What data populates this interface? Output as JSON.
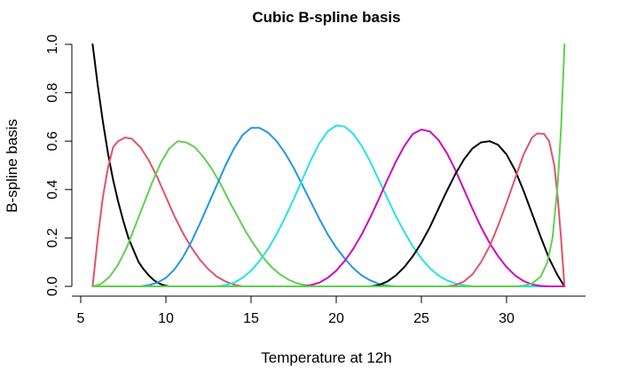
{
  "chart_data": {
    "type": "line",
    "title": "Cubic B-spline basis",
    "xlabel": "Temperature at 12h",
    "ylabel": "B-spline basis",
    "xlim": [
      5.5,
      33.7
    ],
    "ylim": [
      0,
      1.0
    ],
    "x_ticks": [
      "5",
      "10",
      "15",
      "20",
      "25",
      "30"
    ],
    "y_ticks": [
      "0.0",
      "0.2",
      "0.4",
      "0.6",
      "0.8",
      "1.0"
    ],
    "grid": false,
    "legend": "none",
    "series": [
      {
        "color": "#000000",
        "points": [
          [
            5.7,
            1.0
          ],
          [
            6.0,
            0.83
          ],
          [
            6.3,
            0.68
          ],
          [
            6.6,
            0.55
          ],
          [
            6.9,
            0.44
          ],
          [
            7.2,
            0.35
          ],
          [
            7.5,
            0.27
          ],
          [
            7.8,
            0.2
          ],
          [
            8.1,
            0.15
          ],
          [
            8.4,
            0.1
          ],
          [
            8.7,
            0.07
          ],
          [
            9.0,
            0.045
          ],
          [
            9.3,
            0.025
          ],
          [
            9.6,
            0.012
          ],
          [
            9.9,
            0.004
          ],
          [
            10.2,
            0.0
          ],
          [
            33.4,
            0.0
          ]
        ]
      },
      {
        "color": "#DF536B",
        "points": [
          [
            5.7,
            0.0
          ],
          [
            6.0,
            0.2
          ],
          [
            6.3,
            0.37
          ],
          [
            6.6,
            0.49
          ],
          [
            6.9,
            0.575
          ],
          [
            7.2,
            0.6
          ],
          [
            7.6,
            0.615
          ],
          [
            8.0,
            0.61
          ],
          [
            8.5,
            0.575
          ],
          [
            9.0,
            0.52
          ],
          [
            9.5,
            0.45
          ],
          [
            10.0,
            0.37
          ],
          [
            10.5,
            0.29
          ],
          [
            11.0,
            0.22
          ],
          [
            11.5,
            0.16
          ],
          [
            12.0,
            0.11
          ],
          [
            12.5,
            0.07
          ],
          [
            13.0,
            0.04
          ],
          [
            13.5,
            0.02
          ],
          [
            14.0,
            0.007
          ],
          [
            14.5,
            0.0
          ],
          [
            33.4,
            0.0
          ]
        ]
      },
      {
        "color": "#61D04F",
        "points": [
          [
            5.7,
            0.0
          ],
          [
            6.2,
            0.01
          ],
          [
            6.7,
            0.04
          ],
          [
            7.2,
            0.09
          ],
          [
            7.7,
            0.16
          ],
          [
            8.2,
            0.25
          ],
          [
            8.7,
            0.34
          ],
          [
            9.2,
            0.43
          ],
          [
            9.7,
            0.51
          ],
          [
            10.2,
            0.57
          ],
          [
            10.7,
            0.6
          ],
          [
            11.2,
            0.595
          ],
          [
            11.7,
            0.575
          ],
          [
            12.2,
            0.535
          ],
          [
            12.7,
            0.485
          ],
          [
            13.2,
            0.425
          ],
          [
            13.7,
            0.355
          ],
          [
            14.2,
            0.29
          ],
          [
            14.7,
            0.225
          ],
          [
            15.2,
            0.17
          ],
          [
            15.7,
            0.12
          ],
          [
            16.2,
            0.08
          ],
          [
            16.7,
            0.05
          ],
          [
            17.2,
            0.028
          ],
          [
            17.7,
            0.013
          ],
          [
            18.2,
            0.004
          ],
          [
            18.7,
            0.0
          ],
          [
            33.4,
            0.0
          ]
        ]
      },
      {
        "color": "#2297E6",
        "points": [
          [
            5.7,
            0.0
          ],
          [
            8.5,
            0.0
          ],
          [
            9.0,
            0.005
          ],
          [
            9.5,
            0.015
          ],
          [
            10.0,
            0.035
          ],
          [
            10.5,
            0.07
          ],
          [
            11.0,
            0.12
          ],
          [
            11.5,
            0.185
          ],
          [
            12.0,
            0.26
          ],
          [
            12.5,
            0.34
          ],
          [
            13.0,
            0.42
          ],
          [
            13.5,
            0.5
          ],
          [
            14.0,
            0.57
          ],
          [
            14.5,
            0.625
          ],
          [
            15.0,
            0.655
          ],
          [
            15.5,
            0.655
          ],
          [
            16.0,
            0.635
          ],
          [
            16.5,
            0.6
          ],
          [
            17.0,
            0.55
          ],
          [
            17.5,
            0.49
          ],
          [
            18.0,
            0.42
          ],
          [
            18.5,
            0.35
          ],
          [
            19.0,
            0.28
          ],
          [
            19.5,
            0.215
          ],
          [
            20.0,
            0.16
          ],
          [
            20.5,
            0.115
          ],
          [
            21.0,
            0.075
          ],
          [
            21.5,
            0.045
          ],
          [
            22.0,
            0.025
          ],
          [
            22.5,
            0.01
          ],
          [
            23.0,
            0.003
          ],
          [
            23.5,
            0.0
          ],
          [
            33.4,
            0.0
          ]
        ]
      },
      {
        "color": "#28E2E5",
        "points": [
          [
            5.7,
            0.0
          ],
          [
            13.0,
            0.0
          ],
          [
            13.5,
            0.005
          ],
          [
            14.0,
            0.015
          ],
          [
            14.5,
            0.035
          ],
          [
            15.0,
            0.065
          ],
          [
            15.5,
            0.105
          ],
          [
            16.0,
            0.155
          ],
          [
            16.5,
            0.215
          ],
          [
            17.0,
            0.285
          ],
          [
            17.5,
            0.36
          ],
          [
            18.0,
            0.44
          ],
          [
            18.5,
            0.52
          ],
          [
            19.0,
            0.59
          ],
          [
            19.5,
            0.64
          ],
          [
            20.0,
            0.665
          ],
          [
            20.5,
            0.66
          ],
          [
            21.0,
            0.63
          ],
          [
            21.5,
            0.58
          ],
          [
            22.0,
            0.515
          ],
          [
            22.5,
            0.44
          ],
          [
            23.0,
            0.365
          ],
          [
            23.5,
            0.29
          ],
          [
            24.0,
            0.225
          ],
          [
            24.5,
            0.165
          ],
          [
            25.0,
            0.115
          ],
          [
            25.5,
            0.075
          ],
          [
            26.0,
            0.045
          ],
          [
            26.5,
            0.025
          ],
          [
            27.0,
            0.012
          ],
          [
            27.5,
            0.005
          ],
          [
            28.0,
            0.0
          ],
          [
            33.4,
            0.0
          ]
        ]
      },
      {
        "color": "#CD0BBC",
        "points": [
          [
            5.7,
            0.0
          ],
          [
            18.0,
            0.0
          ],
          [
            18.5,
            0.005
          ],
          [
            19.0,
            0.015
          ],
          [
            19.5,
            0.035
          ],
          [
            20.0,
            0.065
          ],
          [
            20.5,
            0.105
          ],
          [
            21.0,
            0.155
          ],
          [
            21.5,
            0.215
          ],
          [
            22.0,
            0.285
          ],
          [
            22.5,
            0.36
          ],
          [
            23.0,
            0.44
          ],
          [
            23.5,
            0.515
          ],
          [
            24.0,
            0.58
          ],
          [
            24.5,
            0.63
          ],
          [
            25.0,
            0.648
          ],
          [
            25.5,
            0.64
          ],
          [
            26.0,
            0.605
          ],
          [
            26.5,
            0.55
          ],
          [
            27.0,
            0.48
          ],
          [
            27.5,
            0.4
          ],
          [
            28.0,
            0.32
          ],
          [
            28.5,
            0.245
          ],
          [
            29.0,
            0.18
          ],
          [
            29.5,
            0.125
          ],
          [
            30.0,
            0.08
          ],
          [
            30.5,
            0.045
          ],
          [
            31.0,
            0.022
          ],
          [
            31.5,
            0.008
          ],
          [
            32.0,
            0.002
          ],
          [
            32.5,
            0.0
          ],
          [
            33.4,
            0.0
          ]
        ]
      },
      {
        "color": "#000000",
        "points": [
          [
            22.0,
            0.0
          ],
          [
            22.5,
            0.005
          ],
          [
            23.0,
            0.02
          ],
          [
            23.5,
            0.045
          ],
          [
            24.0,
            0.08
          ],
          [
            24.5,
            0.125
          ],
          [
            25.0,
            0.18
          ],
          [
            25.5,
            0.245
          ],
          [
            26.0,
            0.32
          ],
          [
            26.5,
            0.395
          ],
          [
            27.0,
            0.465
          ],
          [
            27.5,
            0.525
          ],
          [
            28.0,
            0.57
          ],
          [
            28.5,
            0.595
          ],
          [
            29.0,
            0.6
          ],
          [
            29.5,
            0.585
          ],
          [
            30.0,
            0.545
          ],
          [
            30.5,
            0.48
          ],
          [
            31.0,
            0.395
          ],
          [
            31.5,
            0.3
          ],
          [
            32.0,
            0.205
          ],
          [
            32.5,
            0.115
          ],
          [
            33.0,
            0.045
          ],
          [
            33.4,
            0.0
          ]
        ]
      },
      {
        "color": "#DF536B",
        "points": [
          [
            26.5,
            0.0
          ],
          [
            27.0,
            0.005
          ],
          [
            27.5,
            0.02
          ],
          [
            28.0,
            0.05
          ],
          [
            28.5,
            0.1
          ],
          [
            29.0,
            0.165
          ],
          [
            29.5,
            0.25
          ],
          [
            30.0,
            0.345
          ],
          [
            30.5,
            0.445
          ],
          [
            31.0,
            0.545
          ],
          [
            31.5,
            0.615
          ],
          [
            31.8,
            0.632
          ],
          [
            32.2,
            0.63
          ],
          [
            32.5,
            0.6
          ],
          [
            32.8,
            0.5
          ],
          [
            33.0,
            0.37
          ],
          [
            33.2,
            0.2
          ],
          [
            33.4,
            0.0
          ]
        ]
      },
      {
        "color": "#61D04F",
        "points": [
          [
            5.7,
            0.0
          ],
          [
            30.5,
            0.0
          ],
          [
            31.0,
            0.003
          ],
          [
            31.5,
            0.012
          ],
          [
            32.0,
            0.04
          ],
          [
            32.4,
            0.1
          ],
          [
            32.7,
            0.2
          ],
          [
            33.0,
            0.42
          ],
          [
            33.2,
            0.65
          ],
          [
            33.4,
            1.0
          ]
        ]
      }
    ]
  }
}
